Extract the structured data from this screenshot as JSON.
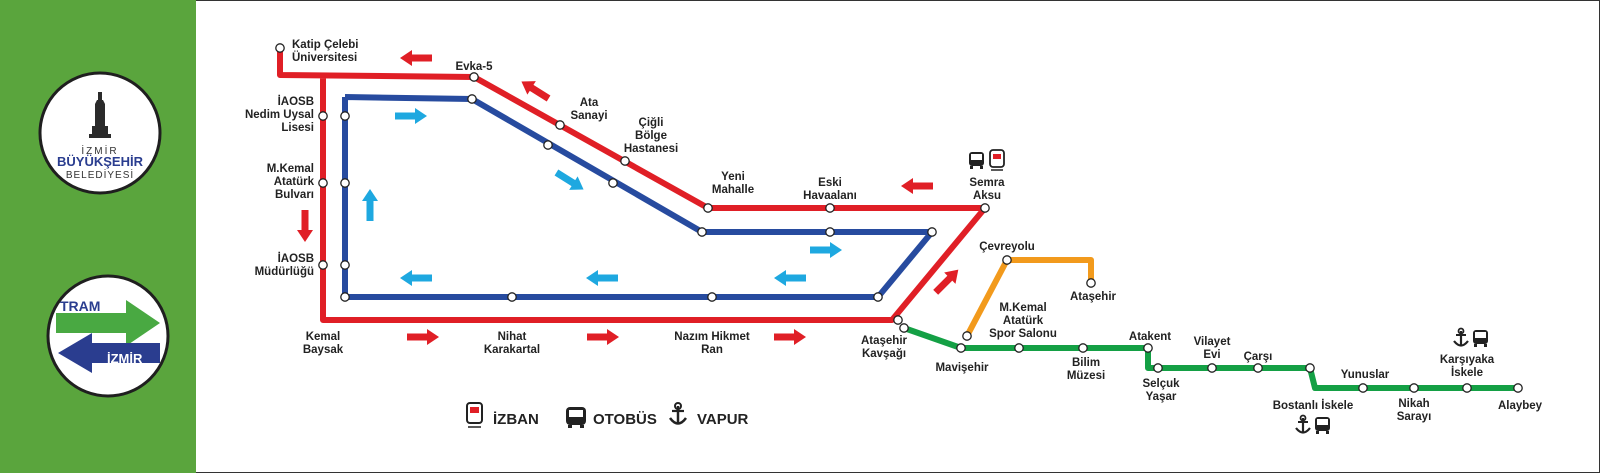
{
  "colors": {
    "green_panel": "#5aa53d",
    "red_line": "#e01f26",
    "blue_line": "#274b9f",
    "green_line": "#14a045",
    "orange_line": "#f29a1c",
    "arrow_blue": "#1ea8e0",
    "tram_green": "#49a942",
    "tram_navy": "#2a3d8f"
  },
  "logos": {
    "municipality": {
      "line1": "İZMİR",
      "line2": "BÜYÜKŞEHİR",
      "line3": "BELEDİYESİ"
    },
    "tram": {
      "word1": "TRAM",
      "word2": "İZMİR"
    }
  },
  "legend": {
    "izban": "İZBAN",
    "bus": "OTOBÜS",
    "ferry": "VAPUR"
  },
  "stations": {
    "katip_celebi": [
      "Katip Çelebi",
      "Üniversitesi"
    ],
    "evka5": [
      "Evka-5"
    ],
    "ata_sanayi": [
      "Ata",
      "Sanayi"
    ],
    "cigli_bolge": [
      "Çiğli",
      "Bölge",
      "Hastanesi"
    ],
    "yeni_mahalle": [
      "Yeni",
      "Mahalle"
    ],
    "eski_havaalani": [
      "Eski",
      "Havaalanı"
    ],
    "semra_aksu": [
      "Semra",
      "Aksu"
    ],
    "iaosb_nedim": [
      "İAOSB",
      "Nedim Uysal",
      "Lisesi"
    ],
    "mkemal_ataturk_bulvari": [
      "M.Kemal",
      "Atatürk",
      "Bulvarı"
    ],
    "iaosb_mudurlugu": [
      "İAOSB",
      "Müdürlüğü"
    ],
    "kemal_baysak": [
      "Kemal",
      "Baysak"
    ],
    "nihat_karakartal": [
      "Nihat",
      "Karakartal"
    ],
    "nazim_hikmet": [
      "Nazım Hikmet",
      "Ran"
    ],
    "atasehir_kavsagi": [
      "Ataşehir",
      "Kavşağı"
    ],
    "cevreyolu": [
      "Çevreyolu"
    ],
    "atasehir": [
      "Ataşehir"
    ],
    "mavisehir": [
      "Mavişehir"
    ],
    "mkemal_spor": [
      "M.Kemal",
      "Atatürk",
      "Spor Salonu"
    ],
    "bilim_muzesi": [
      "Bilim",
      "Müzesi"
    ],
    "atakent": [
      "Atakent"
    ],
    "selcuk_yasar": [
      "Selçuk",
      "Yaşar"
    ],
    "vilayet_evi": [
      "Vilayet",
      "Evi"
    ],
    "carsi": [
      "Çarşı"
    ],
    "bostanli_iskele": [
      "Bostanlı İskele"
    ],
    "yunuslar": [
      "Yunuslar"
    ],
    "nikah_sarayi": [
      "Nikah",
      "Sarayı"
    ],
    "karsiyaka_iskele": [
      "Karşıyaka",
      "İskele"
    ],
    "alaybey": [
      "Alaybey"
    ]
  }
}
